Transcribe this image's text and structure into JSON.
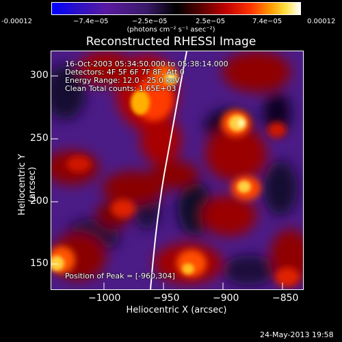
{
  "colorbar": {
    "tick_labels": [
      "-0.00012",
      "−7.4e−05",
      "−2.5e−05",
      "2.5e−05",
      "7.4e−05",
      "0.00012"
    ],
    "units_label": "(photons cm⁻² s⁻¹ asec⁻²)"
  },
  "title": "Reconstructed RHESSI Image",
  "info": {
    "time_range": "16-Oct-2003 05:34:50.000 to 05:38:14.000",
    "detectors": "Detectors: 4F 5F 6F 7F 8F, Att 0",
    "energy": "Energy Range: 12.0 - 25.0 keV",
    "clean": "Clean    Total counts: 1.65E+03",
    "peak": "Position of Peak = [-960,304]"
  },
  "axes": {
    "x_label": "Heliocentric X (arcsec)",
    "y_label": "Heliocentric Y (arcsec)",
    "x_ticks": [
      "−1000",
      "−950",
      "−900",
      "−850"
    ],
    "y_ticks": [
      "300",
      "250",
      "200",
      "150"
    ]
  },
  "date_stamp": "24-May-2013 19:58"
}
